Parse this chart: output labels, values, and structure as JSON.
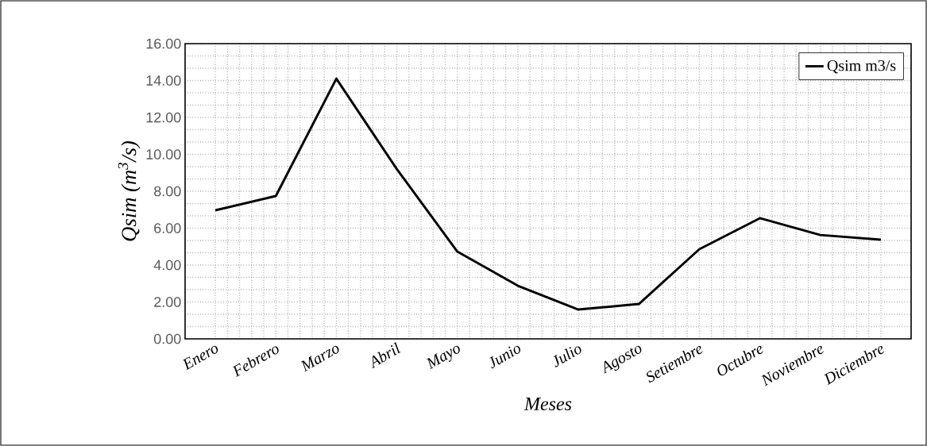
{
  "chart_data": {
    "type": "line",
    "xlabel": "Meses",
    "ylabel": "*Qsim (m$^{3}$/s)*",
    "categories": [
      "Enero",
      "Febrero",
      "Marzo",
      "Abril",
      "Mayo",
      "Junio",
      "Julio",
      "Agosto",
      "Setiembre",
      "Octubre",
      "Noviembre",
      "Diciembre"
    ],
    "series": [
      {
        "name": "Qsim m3/s",
        "color": "#000000",
        "values": [
          6.97,
          7.74,
          14.1,
          9.2,
          4.73,
          2.88,
          1.59,
          1.89,
          4.86,
          6.54,
          5.63,
          5.38
        ]
      }
    ],
    "ylim": [
      0,
      16
    ],
    "yticks": [
      {
        "value": 0,
        "label": "0.00"
      },
      {
        "value": 2,
        "label": "2.00"
      },
      {
        "value": 4,
        "label": "4.00"
      },
      {
        "value": 6,
        "label": "6.00"
      },
      {
        "value": 8,
        "label": "8.00"
      },
      {
        "value": 10,
        "label": "10.00"
      },
      {
        "value": 12,
        "label": "12.00"
      },
      {
        "value": 14,
        "label": "14.00"
      },
      {
        "value": 16,
        "label": "16.00"
      }
    ],
    "grid": true,
    "legend": "top right"
  }
}
